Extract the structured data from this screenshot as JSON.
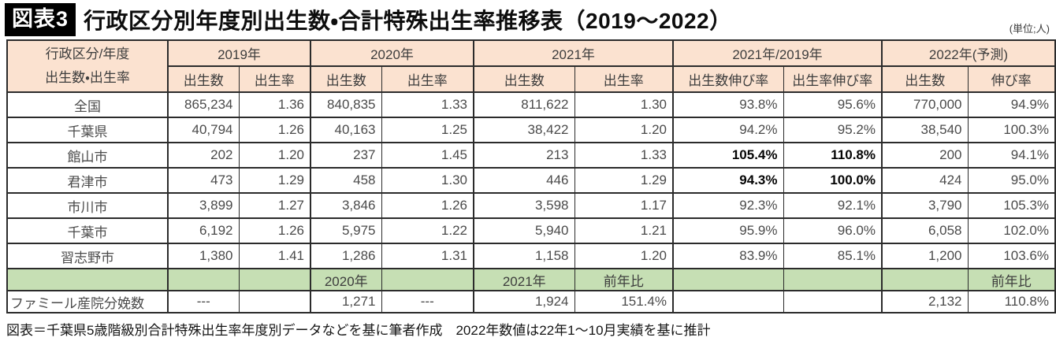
{
  "header": {
    "badge": "図表3",
    "unit": "(単位;人)"
  },
  "footer": {
    "source": "図表＝千葉県5歳階級別合計特殊出生率年度別データなどを基に筆者作成　2022年数値は22年1～10月実績を基に推計"
  },
  "colors": {
    "header_bg": "#fbe2d0",
    "band_bg": "#c6dfb4",
    "border": "#2b2b2b",
    "badge_bg": "#000000",
    "badge_text": "#ffffff"
  },
  "chart_data": {
    "type": "table",
    "title": "行政区分別年度別出生数・合計特殊出生率推移表（2019～2022）",
    "unit_note": "(単位;人)",
    "corner_header": [
      "行政区分/年度",
      "出生数・出生率"
    ],
    "column_groups": [
      {
        "label": "2019年",
        "columns": [
          "出生数",
          "出生率"
        ]
      },
      {
        "label": "2020年",
        "columns": [
          "出生数",
          "出生率"
        ]
      },
      {
        "label": "2021年",
        "columns": [
          "出生数",
          "出生率"
        ]
      },
      {
        "label": "2021年/2019年",
        "columns": [
          "出生数伸び率",
          "出生率伸び率"
        ]
      },
      {
        "label": "2022年(予測)",
        "columns": [
          "出生数",
          "伸び率"
        ]
      }
    ],
    "rows": [
      {
        "label": "全国",
        "values": [
          "865,234",
          "1.36",
          "840,835",
          "1.33",
          "811,622",
          "1.30",
          "93.8%",
          "95.6%",
          "770,000",
          "94.9%"
        ],
        "bold_indices": []
      },
      {
        "label": "千葉県",
        "values": [
          "40,794",
          "1.26",
          "40,163",
          "1.25",
          "38,422",
          "1.20",
          "94.2%",
          "95.2%",
          "38,540",
          "100.3%"
        ],
        "bold_indices": []
      },
      {
        "label": "館山市",
        "values": [
          "202",
          "1.20",
          "237",
          "1.45",
          "213",
          "1.33",
          "105.4%",
          "110.8%",
          "200",
          "94.1%"
        ],
        "bold_indices": [
          6,
          7
        ]
      },
      {
        "label": "君津市",
        "values": [
          "473",
          "1.29",
          "458",
          "1.30",
          "446",
          "1.29",
          "94.3%",
          "100.0%",
          "424",
          "95.0%"
        ],
        "bold_indices": [
          6,
          7
        ]
      },
      {
        "label": "市川市",
        "values": [
          "3,899",
          "1.27",
          "3,846",
          "1.26",
          "3,598",
          "1.17",
          "92.3%",
          "92.1%",
          "3,790",
          "105.3%"
        ],
        "bold_indices": []
      },
      {
        "label": "千葉市",
        "values": [
          "6,192",
          "1.26",
          "5,975",
          "1.22",
          "5,940",
          "1.21",
          "95.9%",
          "96.0%",
          "6,058",
          "102.0%"
        ],
        "bold_indices": []
      },
      {
        "label": "習志野市",
        "values": [
          "1,380",
          "1.41",
          "1,286",
          "1.31",
          "1,158",
          "1.20",
          "83.9%",
          "85.1%",
          "1,200",
          "103.6%"
        ],
        "bold_indices": []
      }
    ],
    "band_row": {
      "label": "",
      "values": [
        "",
        "",
        "2020年",
        "",
        "2021年",
        "前年比",
        "",
        "",
        "",
        "前年比"
      ]
    },
    "clinic_row": {
      "label": "ファミール産院分娩数",
      "values": [
        "---",
        "",
        "1,271",
        "---",
        "1,924",
        "151.4%",
        "",
        "",
        "2,132",
        "110.8%"
      ]
    },
    "source_note": "図表＝千葉県5歳階級別合計特殊出生率年度別データなどを基に筆者作成　2022年数値は22年1～10月実績を基に推計"
  }
}
